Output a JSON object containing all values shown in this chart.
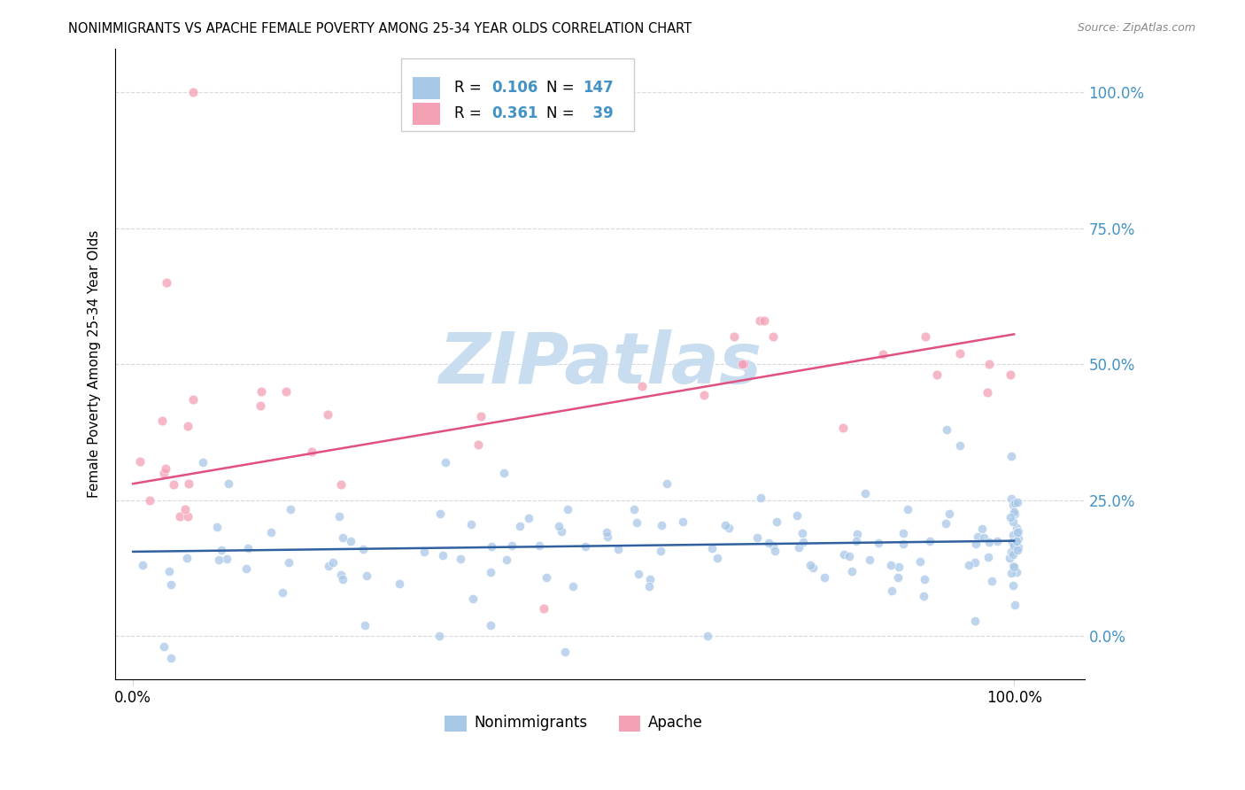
{
  "title": "NONIMMIGRANTS VS APACHE FEMALE POVERTY AMONG 25-34 YEAR OLDS CORRELATION CHART",
  "source": "Source: ZipAtlas.com",
  "ylabel": "Female Poverty Among 25-34 Year Olds",
  "color_blue": "#a8c8e8",
  "color_pink": "#f4a0b5",
  "color_blue_text": "#4292c6",
  "color_pink_line": "#e05080",
  "color_blue_line": "#3060a0",
  "color_grid": "#d8d8e0",
  "watermark_color": "#c8ddf0",
  "background_color": "#ffffff",
  "blue_line_start_y": 0.155,
  "blue_line_end_y": 0.175,
  "pink_line_start_y": 0.28,
  "pink_line_end_y": 0.555,
  "xlim": [
    -0.02,
    1.08
  ],
  "ylim": [
    -0.08,
    1.08
  ]
}
